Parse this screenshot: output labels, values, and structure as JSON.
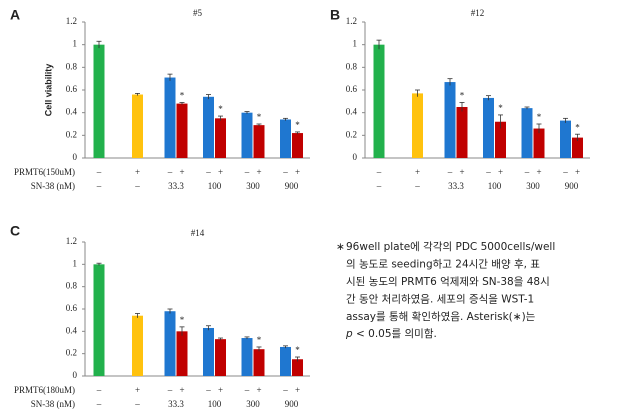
{
  "chart_data": [
    {
      "type": "bar",
      "panel": "A",
      "title": "#5",
      "y_label": "Cell viability",
      "ylim": [
        0,
        1.2
      ],
      "yticks": [
        0,
        0.2,
        0.4,
        0.6,
        0.8,
        1,
        1.2
      ],
      "values": [
        1.0,
        0.56,
        0.71,
        0.48,
        0.54,
        0.35,
        0.4,
        0.29,
        0.34,
        0.22
      ],
      "errors": [
        0.03,
        0.01,
        0.03,
        0.01,
        0.02,
        0.02,
        0.01,
        0.01,
        0.01,
        0.01
      ],
      "colors": [
        "#22b14c",
        "#ffc20e",
        "#1f77d0",
        "#c00000",
        "#1f77d0",
        "#c00000",
        "#1f77d0",
        "#c00000",
        "#1f77d0",
        "#c00000"
      ],
      "asterisks": [
        null,
        null,
        null,
        "*",
        null,
        "*",
        null,
        "*",
        null,
        "*"
      ],
      "prmt6_label": "PRMT6(150uM)",
      "prmt6": [
        "–",
        "+",
        "–",
        "+",
        "–",
        "+",
        "–",
        "+",
        "–",
        "+"
      ],
      "sn38_label": "SN-38 (nM)",
      "sn38": [
        "–",
        "–",
        "33.3",
        "100",
        "300",
        "900"
      ]
    },
    {
      "type": "bar",
      "panel": "B",
      "title": "#12",
      "ylim": [
        0,
        1.2
      ],
      "yticks": [
        0,
        0.2,
        0.4,
        0.6,
        0.8,
        1,
        1.2
      ],
      "values": [
        1.0,
        0.57,
        0.67,
        0.45,
        0.53,
        0.32,
        0.44,
        0.26,
        0.33,
        0.18
      ],
      "errors": [
        0.04,
        0.03,
        0.03,
        0.04,
        0.02,
        0.06,
        0.01,
        0.04,
        0.02,
        0.03
      ],
      "colors": [
        "#22b14c",
        "#ffc20e",
        "#1f77d0",
        "#c00000",
        "#1f77d0",
        "#c00000",
        "#1f77d0",
        "#c00000",
        "#1f77d0",
        "#c00000"
      ],
      "asterisks": [
        null,
        null,
        null,
        "*",
        null,
        "*",
        null,
        "*",
        null,
        "*"
      ],
      "prmt6": [
        "–",
        "+",
        "–",
        "+",
        "–",
        "+",
        "–",
        "+",
        "–",
        "+"
      ],
      "sn38": [
        "–",
        "–",
        "33.3",
        "100",
        "300",
        "900"
      ]
    },
    {
      "type": "bar",
      "panel": "C",
      "title": "#14",
      "ylim": [
        0,
        1.2
      ],
      "yticks": [
        0,
        0.2,
        0.4,
        0.6,
        0.8,
        1,
        1.2
      ],
      "values": [
        1.0,
        0.54,
        0.58,
        0.4,
        0.43,
        0.33,
        0.34,
        0.24,
        0.26,
        0.15
      ],
      "errors": [
        0.01,
        0.02,
        0.02,
        0.04,
        0.02,
        0.01,
        0.01,
        0.02,
        0.01,
        0.02
      ],
      "colors": [
        "#22b14c",
        "#ffc20e",
        "#1f77d0",
        "#c00000",
        "#1f77d0",
        "#c00000",
        "#1f77d0",
        "#c00000",
        "#1f77d0",
        "#c00000"
      ],
      "asterisks": [
        null,
        null,
        null,
        "*",
        null,
        null,
        null,
        "*",
        null,
        "*"
      ],
      "prmt6_label": "PRMT6(180uM)",
      "prmt6": [
        "–",
        "+",
        "–",
        "+",
        "–",
        "+",
        "–",
        "+",
        "–",
        "+"
      ],
      "sn38_label": "SN-38 (nM)",
      "sn38": [
        "–",
        "–",
        "33.3",
        "100",
        "300",
        "900"
      ]
    }
  ],
  "note": {
    "bullet": "∗",
    "lines": [
      "96well plate에 각각의 PDC 5000cells/well",
      "의 농도로 seeding하고 24시간 배양 후, 표",
      "시된 농도의 PRMT6 억제제와 SN-38을 48시",
      "간 동안 처리하였음. 세포의 증식을 WST-1",
      "assay를 통해 확인하였음. Asterisk(∗)는"
    ],
    "p": "p",
    "last": " < 0.05를 의미함."
  }
}
